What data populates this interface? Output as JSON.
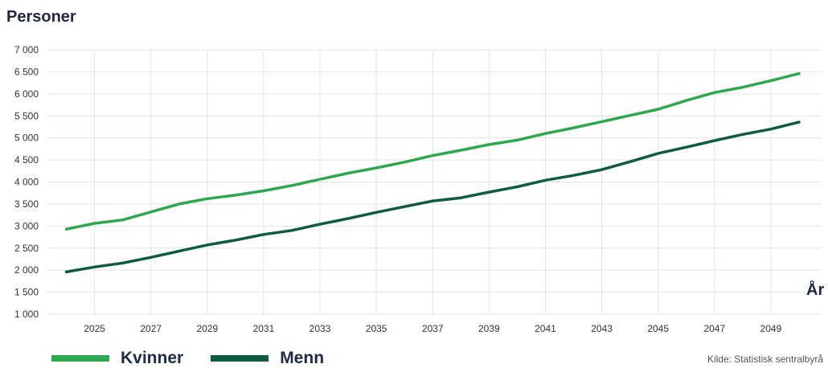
{
  "chart_data": {
    "type": "line",
    "ylabel": "Personer",
    "xlabel": "År",
    "source": "Kilde: Statistisk sentralbyrå",
    "ylim": [
      1000,
      7000
    ],
    "xlim": [
      2023.3,
      2050.8
    ],
    "y_ticks": [
      1000,
      1500,
      2000,
      2500,
      3000,
      3500,
      4000,
      4500,
      5000,
      5500,
      6000,
      6500,
      7000
    ],
    "y_tick_labels": [
      "1 000",
      "1 500",
      "2 000",
      "2 500",
      "3 000",
      "3 500",
      "4 000",
      "4 500",
      "5 000",
      "5 500",
      "6 000",
      "6 500",
      "7 000"
    ],
    "x_ticks": [
      2025,
      2027,
      2029,
      2031,
      2033,
      2035,
      2037,
      2039,
      2041,
      2043,
      2045,
      2047,
      2049
    ],
    "x_tick_labels": [
      "2025",
      "2027",
      "2029",
      "2031",
      "2033",
      "2035",
      "2037",
      "2039",
      "2041",
      "2043",
      "2045",
      "2047",
      "2049"
    ],
    "grid": true,
    "legend_position": "bottom-left",
    "x": [
      2024,
      2025,
      2026,
      2027,
      2028,
      2029,
      2030,
      2031,
      2032,
      2033,
      2034,
      2035,
      2036,
      2037,
      2038,
      2039,
      2040,
      2041,
      2042,
      2043,
      2044,
      2045,
      2046,
      2047,
      2048,
      2049,
      2050
    ],
    "series": [
      {
        "name": "Kvinner",
        "color": "#2ea84f",
        "values": [
          2930,
          3060,
          3140,
          3320,
          3500,
          3620,
          3700,
          3800,
          3920,
          4060,
          4200,
          4320,
          4450,
          4600,
          4720,
          4850,
          4950,
          5100,
          5230,
          5370,
          5510,
          5650,
          5850,
          6030,
          6150,
          6300,
          6460
        ]
      },
      {
        "name": "Menn",
        "color": "#0f5c3e",
        "values": [
          1960,
          2070,
          2160,
          2290,
          2430,
          2570,
          2680,
          2810,
          2900,
          3040,
          3170,
          3310,
          3440,
          3570,
          3640,
          3770,
          3890,
          4040,
          4150,
          4280,
          4460,
          4650,
          4790,
          4940,
          5080,
          5200,
          5360
        ]
      }
    ]
  }
}
